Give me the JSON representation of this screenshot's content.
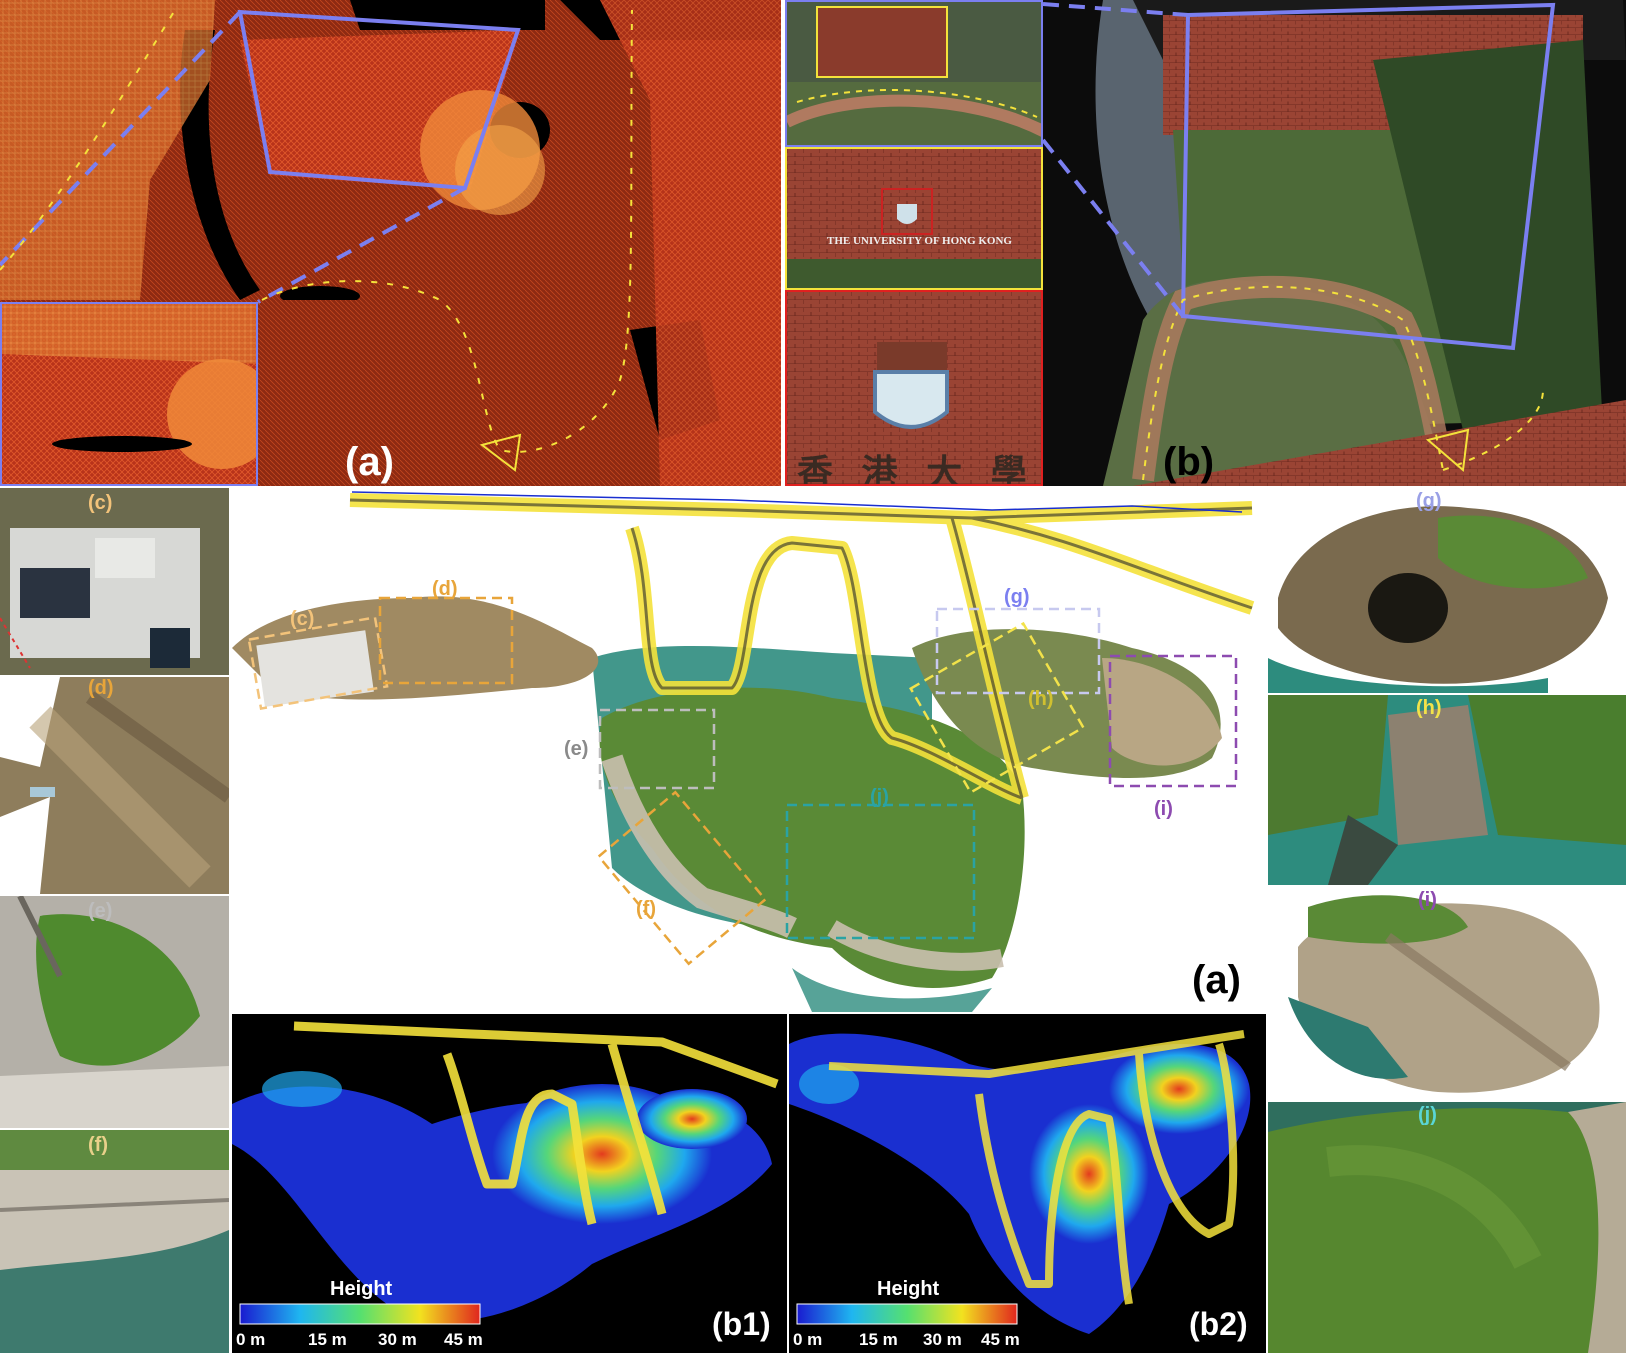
{
  "top_left": {
    "label": "(a)"
  },
  "top_right": {
    "label": "(b)",
    "sign_text": "THE UNIVERSITY OF HONG KONG",
    "chinese_text": "香 港 大 學"
  },
  "island": {
    "label": "(a)",
    "region_tags": [
      "(c)",
      "(d)",
      "(e)",
      "(f)",
      "(g)",
      "(h)",
      "(i)",
      "(j)"
    ]
  },
  "side_crops": [
    {
      "tag": "(c)",
      "color": "#f3c37a"
    },
    {
      "tag": "(d)",
      "color": "#e8a53a"
    },
    {
      "tag": "(e)",
      "color": "#bdbdbd"
    },
    {
      "tag": "(f)",
      "color": "#e8d08a"
    },
    {
      "tag": "(g)",
      "color": "#9aa0e6"
    },
    {
      "tag": "(h)",
      "color": "#f2e24a"
    },
    {
      "tag": "(i)",
      "color": "#8d4bb0"
    },
    {
      "tag": "(j)",
      "color": "#5ad6d6"
    }
  ],
  "heightmaps": [
    {
      "label": "(b1)",
      "colorbar_title": "Height",
      "ticks": [
        "0 m",
        "15 m",
        "30 m",
        "45 m"
      ]
    },
    {
      "label": "(b2)",
      "colorbar_title": "Height",
      "ticks": [
        "0 m",
        "15 m",
        "30 m",
        "45 m"
      ]
    }
  ],
  "colors": {
    "pointcloud_red": "#d8471e",
    "trajectory_yellow": "#f4e23b",
    "highlight_blue": "#7b7ff0",
    "sea_teal": "#2d8c7e",
    "vegetation_green": "#4b8a2e"
  }
}
